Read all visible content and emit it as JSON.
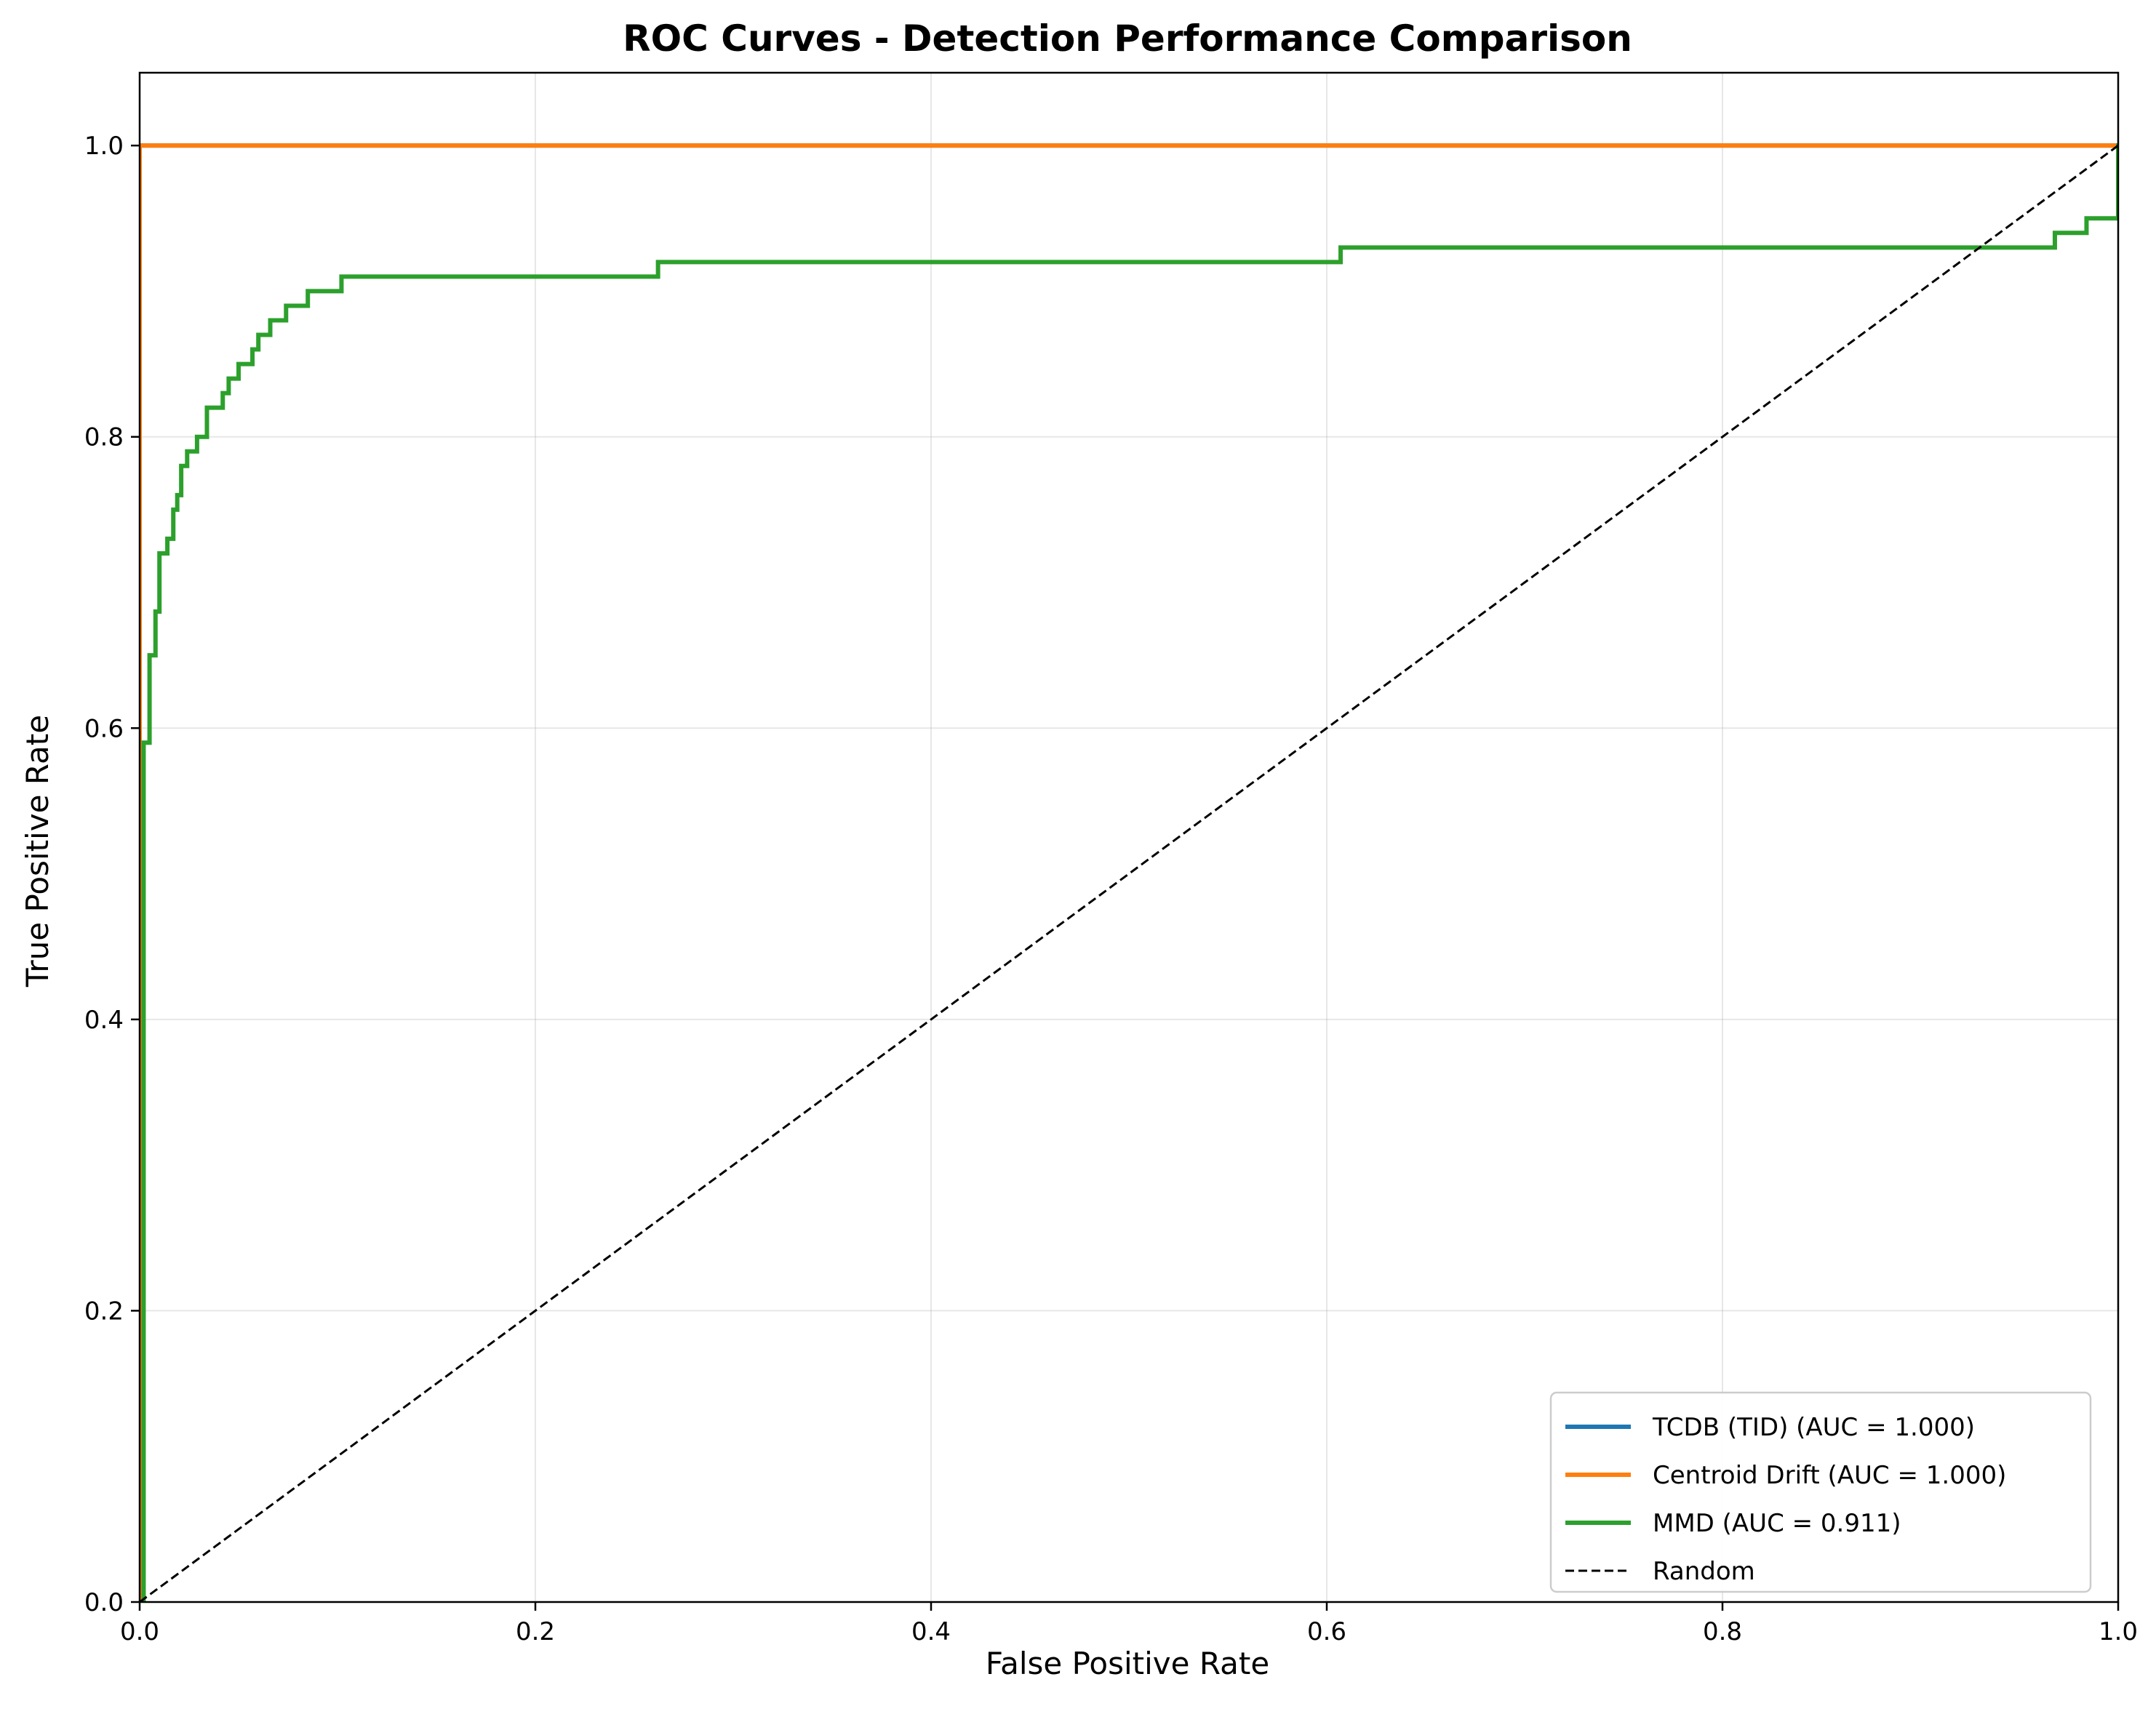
{
  "chart_data": {
    "type": "line",
    "title": "ROC Curves - Detection Performance Comparison",
    "xlabel": "False Positive Rate",
    "ylabel": "True Positive Rate",
    "xlim": [
      0.0,
      1.0
    ],
    "ylim": [
      0.0,
      1.05
    ],
    "xticks": [
      "0.0",
      "0.2",
      "0.4",
      "0.6",
      "0.8",
      "1.0"
    ],
    "yticks": [
      "0.0",
      "0.2",
      "0.4",
      "0.6",
      "0.8",
      "1.0"
    ],
    "grid": true,
    "legend_position": "lower right",
    "series": [
      {
        "name": "TCDB (TID) (AUC = 1.000)",
        "color": "#1f77b4",
        "style": "step",
        "x": [
          0.0,
          0.0,
          1.0
        ],
        "y": [
          0.0,
          1.0,
          1.0
        ]
      },
      {
        "name": "Centroid Drift (AUC = 1.000)",
        "color": "#ff7f0e",
        "style": "step",
        "x": [
          0.0,
          0.0,
          1.0
        ],
        "y": [
          0.0,
          1.0,
          1.0
        ]
      },
      {
        "name": "MMD (AUC = 0.911)",
        "color": "#2ca02c",
        "style": "step",
        "x": [
          0.0,
          0.002,
          0.005,
          0.008,
          0.01,
          0.014,
          0.017,
          0.019,
          0.021,
          0.024,
          0.029,
          0.034,
          0.042,
          0.045,
          0.05,
          0.057,
          0.06,
          0.066,
          0.074,
          0.085,
          0.102,
          0.262,
          0.607,
          0.968,
          0.984,
          1.0,
          1.0
        ],
        "y": [
          0.0,
          0.59,
          0.65,
          0.68,
          0.72,
          0.73,
          0.75,
          0.76,
          0.78,
          0.79,
          0.8,
          0.82,
          0.83,
          0.84,
          0.85,
          0.86,
          0.87,
          0.88,
          0.89,
          0.9,
          0.91,
          0.92,
          0.93,
          0.94,
          0.95,
          0.95,
          1.0
        ]
      },
      {
        "name": "Random",
        "color": "#000000",
        "style": "dashed",
        "x": [
          0.0,
          1.0
        ],
        "y": [
          0.0,
          1.0
        ]
      }
    ]
  }
}
